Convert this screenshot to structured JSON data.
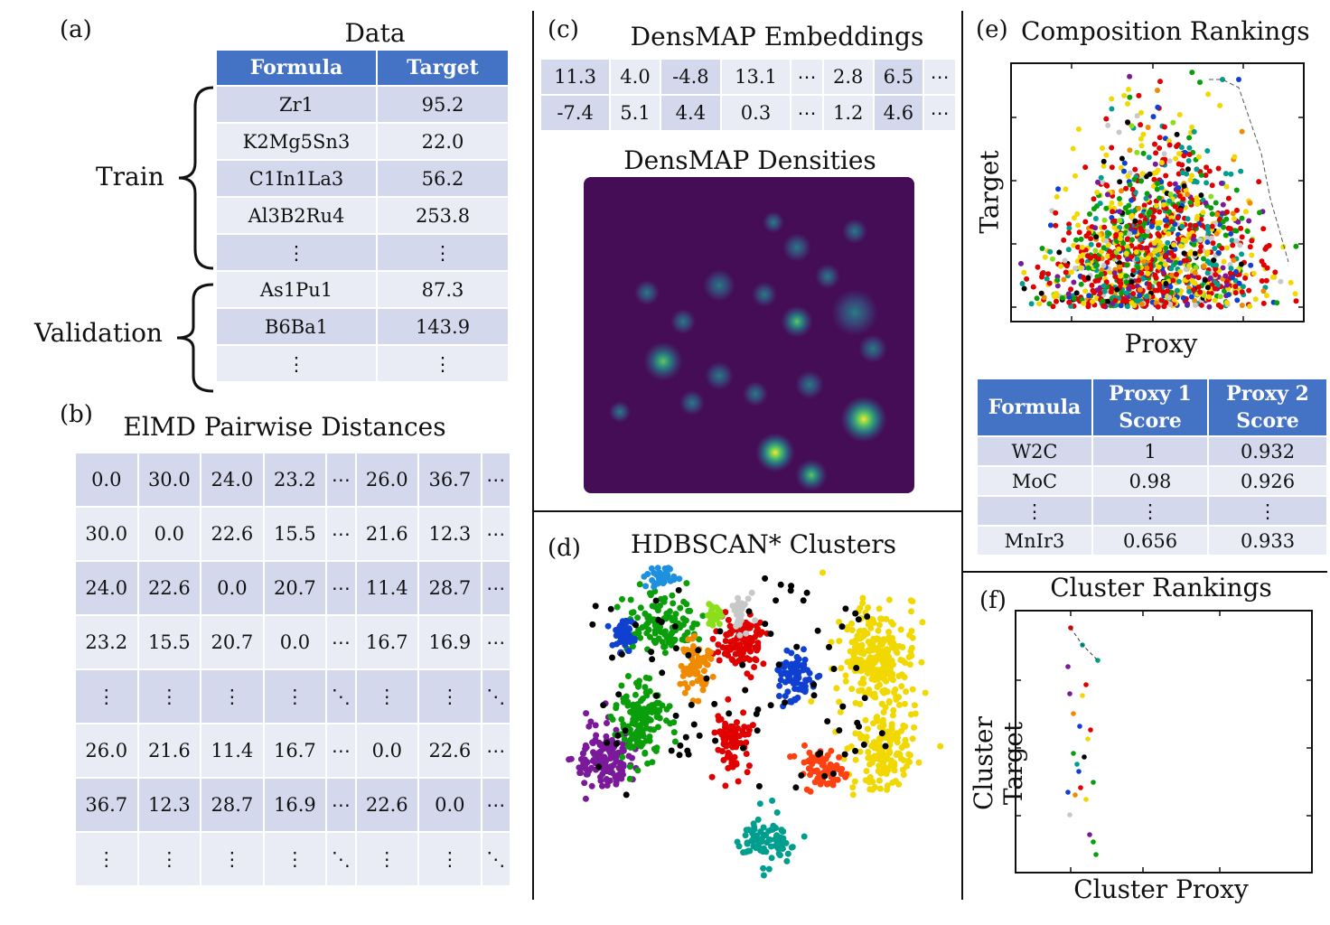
{
  "panel_a": {
    "label": "(a)",
    "title": "Data",
    "headers": [
      "Formula",
      "Target"
    ],
    "train_label": "Train",
    "validation_label": "Validation",
    "rows": [
      [
        "Zr1",
        "95.2"
      ],
      [
        "K2Mg5Sn3",
        "22.0"
      ],
      [
        "C1In1La3",
        "56.2"
      ],
      [
        "Al3B2Ru4",
        "253.8"
      ],
      [
        "⋮",
        "⋮"
      ],
      [
        "As1Pu1",
        "87.3"
      ],
      [
        "B6Ba1",
        "143.9"
      ],
      [
        "⋮",
        "⋮"
      ]
    ]
  },
  "panel_b": {
    "label": "(b)",
    "title": "ElMD Pairwise Distances",
    "rows": [
      [
        "0.0",
        "30.0",
        "24.0",
        "23.2",
        "⋯",
        "26.0",
        "36.7",
        "⋯"
      ],
      [
        "30.0",
        "0.0",
        "22.6",
        "15.5",
        "⋯",
        "21.6",
        "12.3",
        "⋯"
      ],
      [
        "24.0",
        "22.6",
        "0.0",
        "20.7",
        "⋯",
        "11.4",
        "28.7",
        "⋯"
      ],
      [
        "23.2",
        "15.5",
        "20.7",
        "0.0",
        "⋯",
        "16.7",
        "16.9",
        "⋯"
      ],
      [
        "⋮",
        "⋮",
        "⋮",
        "⋮",
        "⋱",
        "⋮",
        "⋮",
        "⋱"
      ],
      [
        "26.0",
        "21.6",
        "11.4",
        "16.7",
        "⋯",
        "0.0",
        "22.6",
        "⋯"
      ],
      [
        "36.7",
        "12.3",
        "28.7",
        "16.9",
        "⋯",
        "22.6",
        "0.0",
        "⋯"
      ],
      [
        "⋮",
        "⋮",
        "⋮",
        "⋮",
        "⋱",
        "⋮",
        "⋮",
        "⋱"
      ]
    ]
  },
  "panel_c": {
    "label": "(c)",
    "title": "DensMAP Embeddings",
    "rows": [
      [
        "11.3",
        "4.0",
        "-4.8",
        "13.1",
        "⋯",
        "2.8",
        "6.5",
        "⋯"
      ],
      [
        "-7.4",
        "5.1",
        "4.4",
        "0.3",
        "⋯",
        "1.2",
        "4.6",
        "⋯"
      ]
    ],
    "density_title": "DensMAP Densities"
  },
  "panel_d": {
    "label": "(d)",
    "title": "HDBSCAN* Clusters"
  },
  "panel_e": {
    "label": "(e)",
    "title": "Composition Rankings",
    "xlabel": "Proxy",
    "ylabel": "Target",
    "headers": [
      "Formula",
      "Proxy 1 Score",
      "Proxy 2 Score"
    ],
    "rows": [
      [
        "W2C",
        "1",
        "0.932"
      ],
      [
        "MoC",
        "0.98",
        "0.926"
      ],
      [
        "⋮",
        "⋮",
        "⋮"
      ],
      [
        "MnIr3",
        "0.656",
        "0.933"
      ]
    ]
  },
  "panel_f": {
    "label": "(f)",
    "title": "Cluster Rankings",
    "xlabel": "Cluster Proxy",
    "ylabel": "Cluster Target"
  },
  "colors": {
    "header_blue": "#4472c4",
    "row_dark": "#d3d8ec",
    "row_light": "#eaecf5",
    "cluster_palette": [
      "#e00000",
      "#f0d800",
      "#009e8e",
      "#0a9e0a",
      "#1040d0",
      "#000000",
      "#7a1a9a",
      "#f08a00",
      "#c8c8c8",
      "#1e90e0",
      "#8adf1a",
      "#ff4010"
    ]
  }
}
